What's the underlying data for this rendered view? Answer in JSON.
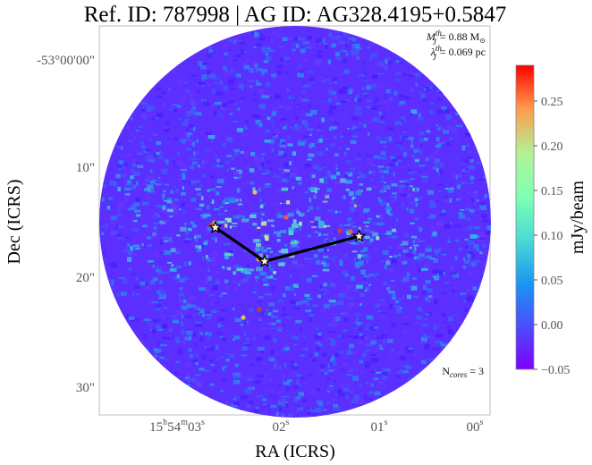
{
  "chart_data": {
    "type": "heatmap",
    "title": "Ref. ID: 787998 | AG ID: AG328.4195+0.5847",
    "xlabel": "RA (ICRS)",
    "ylabel": "Dec (ICRS)",
    "x_tick_labels": [
      "15h54m03s",
      "02s",
      "01s",
      "00s"
    ],
    "x_ticks": {
      "t0": {
        "main": "15",
        "h": "h",
        "m_pre": "54",
        "m": "m",
        "s_pre": "03",
        "s": "s"
      },
      "t1": {
        "main": "02",
        "s": "s"
      },
      "t2": {
        "main": "01",
        "s": "s"
      },
      "t3": {
        "main": "00",
        "s": "s"
      }
    },
    "y_tick_labels": [
      "-53°00'00\"",
      "10\"",
      "20\"",
      "30\""
    ],
    "colorbar": {
      "label": "mJy/beam",
      "range": [
        -0.05,
        0.29
      ],
      "tick_labels": [
        "0.25",
        "0.20",
        "0.15",
        "0.10",
        "0.05",
        "0.00",
        "−0.05"
      ],
      "colormap": "rainbow"
    },
    "annotations": {
      "mass": {
        "sym": "M",
        "sup": "th",
        "sub": "J",
        "text": "= 0.88 M",
        "unit_symbol": "⊙"
      },
      "length": {
        "sym": "λ",
        "sup": "th",
        "sub": "J",
        "text": "= 0.069 pc"
      },
      "ncores": {
        "prefix": "N",
        "sub": "cores",
        "text": " = 3"
      }
    },
    "cores": [
      {
        "ra_s": 2.62,
        "dec_arcsec": 15.2
      },
      {
        "ra_s": 2.13,
        "dec_arcsec": 18.3
      },
      {
        "ra_s": 1.19,
        "dec_arcsec": 16.0
      }
    ],
    "colors": {
      "background_low": "#5a1fff",
      "mid": "#2ea6f0",
      "high": "#d8f07a",
      "peak": "#e83020",
      "link": "#000000",
      "star_fill": "#fff8d0"
    }
  }
}
